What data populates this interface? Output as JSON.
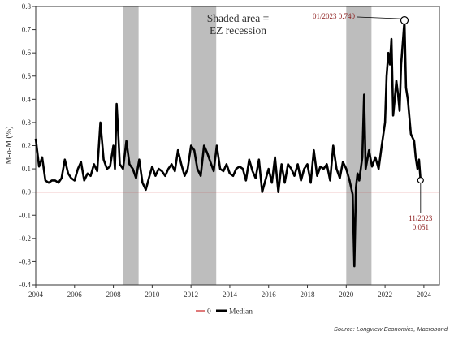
{
  "chart_data": {
    "type": "line",
    "ylabel": "M-o-M (%)",
    "xlim": [
      2004.0,
      2024.8
    ],
    "ylim": [
      -0.4,
      0.8
    ],
    "x_ticks": [
      2004,
      2006,
      2008,
      2010,
      2012,
      2014,
      2016,
      2018,
      2020,
      2022,
      2024
    ],
    "x_tick_labels": [
      "2004",
      "2006",
      "2008",
      "2010",
      "2012",
      "2014",
      "2016",
      "2018",
      "2020",
      "2022",
      "2024"
    ],
    "y_ticks": [
      -0.4,
      -0.3,
      -0.2,
      -0.1,
      0.0,
      0.1,
      0.2,
      0.3,
      0.4,
      0.5,
      0.6,
      0.7,
      0.8
    ],
    "y_tick_labels": [
      "-0.4",
      "-0.3",
      "-0.2",
      "-0.1",
      "0.0",
      "0.1",
      "0.2",
      "0.3",
      "0.4",
      "0.5",
      "0.6",
      "0.7",
      "0.8"
    ],
    "reference_line": {
      "y": 0.0,
      "legend_label": "0",
      "color": "#cc2222"
    },
    "recession_periods": [
      [
        2008.5,
        2009.3
      ],
      [
        2012.0,
        2013.3
      ],
      [
        2020.0,
        2021.3
      ]
    ],
    "shading_note": "Shaded area = EZ recession",
    "annotations": [
      {
        "label": "01/2023 0.740",
        "x": 2023.0,
        "y": 0.74
      },
      {
        "label_lines": [
          "11/2023",
          "0.051"
        ],
        "x": 2023.83,
        "y": 0.051
      }
    ],
    "series": [
      {
        "name": "Median",
        "color": "#000000",
        "points": [
          [
            2004.0,
            0.23
          ],
          [
            2004.17,
            0.11
          ],
          [
            2004.33,
            0.15
          ],
          [
            2004.5,
            0.05
          ],
          [
            2004.67,
            0.04
          ],
          [
            2004.83,
            0.05
          ],
          [
            2005.0,
            0.05
          ],
          [
            2005.17,
            0.04
          ],
          [
            2005.33,
            0.06
          ],
          [
            2005.5,
            0.14
          ],
          [
            2005.67,
            0.08
          ],
          [
            2005.83,
            0.06
          ],
          [
            2006.0,
            0.05
          ],
          [
            2006.17,
            0.1
          ],
          [
            2006.33,
            0.13
          ],
          [
            2006.5,
            0.05
          ],
          [
            2006.67,
            0.08
          ],
          [
            2006.83,
            0.07
          ],
          [
            2007.0,
            0.12
          ],
          [
            2007.17,
            0.09
          ],
          [
            2007.33,
            0.3
          ],
          [
            2007.5,
            0.14
          ],
          [
            2007.67,
            0.1
          ],
          [
            2007.83,
            0.11
          ],
          [
            2008.0,
            0.2
          ],
          [
            2008.08,
            0.1
          ],
          [
            2008.17,
            0.38
          ],
          [
            2008.25,
            0.25
          ],
          [
            2008.33,
            0.12
          ],
          [
            2008.5,
            0.1
          ],
          [
            2008.67,
            0.22
          ],
          [
            2008.83,
            0.12
          ],
          [
            2009.0,
            0.1
          ],
          [
            2009.17,
            0.06
          ],
          [
            2009.33,
            0.14
          ],
          [
            2009.5,
            0.04
          ],
          [
            2009.67,
            0.01
          ],
          [
            2009.83,
            0.06
          ],
          [
            2010.0,
            0.11
          ],
          [
            2010.17,
            0.07
          ],
          [
            2010.33,
            0.1
          ],
          [
            2010.5,
            0.09
          ],
          [
            2010.67,
            0.07
          ],
          [
            2010.83,
            0.1
          ],
          [
            2011.0,
            0.12
          ],
          [
            2011.17,
            0.09
          ],
          [
            2011.33,
            0.18
          ],
          [
            2011.5,
            0.12
          ],
          [
            2011.67,
            0.07
          ],
          [
            2011.83,
            0.1
          ],
          [
            2012.0,
            0.2
          ],
          [
            2012.17,
            0.18
          ],
          [
            2012.33,
            0.1
          ],
          [
            2012.5,
            0.07
          ],
          [
            2012.67,
            0.2
          ],
          [
            2012.83,
            0.17
          ],
          [
            2013.0,
            0.13
          ],
          [
            2013.17,
            0.09
          ],
          [
            2013.33,
            0.2
          ],
          [
            2013.5,
            0.1
          ],
          [
            2013.67,
            0.09
          ],
          [
            2013.83,
            0.12
          ],
          [
            2014.0,
            0.08
          ],
          [
            2014.17,
            0.07
          ],
          [
            2014.33,
            0.1
          ],
          [
            2014.5,
            0.11
          ],
          [
            2014.67,
            0.1
          ],
          [
            2014.83,
            0.05
          ],
          [
            2015.0,
            0.14
          ],
          [
            2015.17,
            0.09
          ],
          [
            2015.33,
            0.06
          ],
          [
            2015.5,
            0.14
          ],
          [
            2015.67,
            0.0
          ],
          [
            2015.83,
            0.05
          ],
          [
            2016.0,
            0.1
          ],
          [
            2016.17,
            0.04
          ],
          [
            2016.33,
            0.15
          ],
          [
            2016.5,
            0.0
          ],
          [
            2016.67,
            0.12
          ],
          [
            2016.83,
            0.04
          ],
          [
            2017.0,
            0.12
          ],
          [
            2017.17,
            0.1
          ],
          [
            2017.33,
            0.07
          ],
          [
            2017.5,
            0.12
          ],
          [
            2017.67,
            0.05
          ],
          [
            2017.83,
            0.1
          ],
          [
            2018.0,
            0.12
          ],
          [
            2018.17,
            0.04
          ],
          [
            2018.33,
            0.18
          ],
          [
            2018.5,
            0.07
          ],
          [
            2018.67,
            0.11
          ],
          [
            2018.83,
            0.1
          ],
          [
            2019.0,
            0.12
          ],
          [
            2019.17,
            0.05
          ],
          [
            2019.33,
            0.2
          ],
          [
            2019.5,
            0.1
          ],
          [
            2019.67,
            0.06
          ],
          [
            2019.83,
            0.13
          ],
          [
            2020.0,
            0.1
          ],
          [
            2020.17,
            0.05
          ],
          [
            2020.33,
            -0.01
          ],
          [
            2020.42,
            -0.32
          ],
          [
            2020.5,
            0.02
          ],
          [
            2020.58,
            0.08
          ],
          [
            2020.67,
            0.05
          ],
          [
            2020.83,
            0.15
          ],
          [
            2020.92,
            0.42
          ],
          [
            2021.0,
            0.1
          ],
          [
            2021.17,
            0.18
          ],
          [
            2021.33,
            0.11
          ],
          [
            2021.5,
            0.15
          ],
          [
            2021.67,
            0.1
          ],
          [
            2021.83,
            0.2
          ],
          [
            2022.0,
            0.3
          ],
          [
            2022.08,
            0.5
          ],
          [
            2022.17,
            0.6
          ],
          [
            2022.25,
            0.55
          ],
          [
            2022.33,
            0.66
          ],
          [
            2022.42,
            0.33
          ],
          [
            2022.5,
            0.4
          ],
          [
            2022.58,
            0.48
          ],
          [
            2022.67,
            0.42
          ],
          [
            2022.75,
            0.35
          ],
          [
            2022.83,
            0.55
          ],
          [
            2023.0,
            0.74
          ],
          [
            2023.08,
            0.45
          ],
          [
            2023.17,
            0.4
          ],
          [
            2023.33,
            0.25
          ],
          [
            2023.5,
            0.22
          ],
          [
            2023.58,
            0.15
          ],
          [
            2023.67,
            0.1
          ],
          [
            2023.75,
            0.14
          ],
          [
            2023.83,
            0.051
          ]
        ]
      }
    ],
    "legend": {
      "position": "bottom-center",
      "entries": [
        "0",
        "Median"
      ]
    },
    "source": "Source: Longview Economics, Macrobond"
  }
}
